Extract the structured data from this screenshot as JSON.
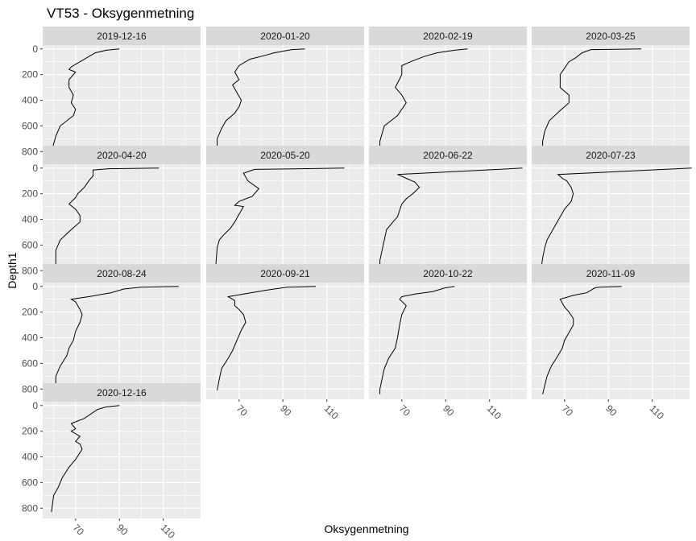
{
  "chart_data": {
    "type": "line",
    "title": "VT53  -  Oksygenmetning",
    "xlabel": "Oksygenmetning",
    "ylabel": "Depth1",
    "xlim": [
      55,
      127
    ],
    "ylim": [
      880,
      -30
    ],
    "y_reversed": true,
    "x_ticks": [
      70,
      90,
      110
    ],
    "y_ticks": [
      0,
      200,
      400,
      600,
      800
    ],
    "grid": true,
    "facets": [
      {
        "label": "2019-12-16",
        "x": [
          90,
          84,
          79,
          70,
          68,
          67,
          70,
          67,
          67,
          69,
          68,
          70,
          69,
          63,
          61,
          60,
          59
        ],
        "y": [
          0,
          10,
          30,
          120,
          140,
          160,
          180,
          240,
          300,
          360,
          420,
          470,
          520,
          600,
          680,
          740,
          800
        ]
      },
      {
        "label": "2020-01-20",
        "x": [
          100,
          94,
          86,
          82,
          75,
          70,
          68,
          70,
          67,
          69,
          71,
          70,
          68,
          64,
          62,
          60,
          60
        ],
        "y": [
          0,
          5,
          30,
          50,
          80,
          130,
          180,
          240,
          280,
          340,
          400,
          450,
          500,
          560,
          620,
          700,
          820
        ]
      },
      {
        "label": "2020-02-19",
        "x": [
          100,
          94,
          86,
          80,
          74,
          70,
          70,
          67,
          70,
          72,
          70,
          68,
          62,
          61,
          60,
          60
        ],
        "y": [
          0,
          10,
          30,
          60,
          100,
          130,
          200,
          300,
          360,
          420,
          470,
          520,
          600,
          660,
          720,
          810
        ]
      },
      {
        "label": "2020-03-25",
        "x": [
          105,
          82,
          78,
          75,
          72,
          70,
          68,
          68,
          72,
          72,
          68,
          63,
          61,
          60,
          60
        ],
        "y": [
          0,
          5,
          30,
          70,
          100,
          150,
          200,
          300,
          360,
          420,
          480,
          560,
          640,
          720,
          820
        ]
      },
      {
        "label": "2020-04-20",
        "x": [
          108,
          85,
          78,
          78,
          76,
          74,
          71,
          70,
          67,
          70,
          72,
          72,
          68,
          63,
          61,
          61
        ],
        "y": [
          0,
          5,
          15,
          60,
          100,
          150,
          200,
          230,
          280,
          320,
          370,
          420,
          480,
          560,
          640,
          830
        ]
      },
      {
        "label": "2020-05-20",
        "x": [
          118,
          77,
          72,
          74,
          79,
          76,
          70,
          68,
          72,
          70,
          68,
          66,
          63,
          61,
          60,
          59
        ],
        "y": [
          0,
          10,
          40,
          100,
          160,
          220,
          260,
          290,
          300,
          360,
          420,
          470,
          520,
          560,
          620,
          840
        ]
      },
      {
        "label": "2020-06-22",
        "x": [
          125,
          68,
          72,
          76,
          78,
          75,
          72,
          70,
          69,
          68,
          66,
          63,
          62,
          61,
          60,
          60
        ],
        "y": [
          0,
          50,
          80,
          110,
          150,
          200,
          240,
          280,
          330,
          380,
          420,
          480,
          560,
          640,
          720,
          840
        ]
      },
      {
        "label": "2020-07-23",
        "x": [
          128,
          67,
          69,
          71,
          73,
          74,
          73,
          70,
          68,
          66,
          64,
          62,
          61,
          60,
          59
        ],
        "y": [
          0,
          50,
          80,
          100,
          150,
          200,
          260,
          320,
          380,
          440,
          500,
          560,
          620,
          700,
          840
        ]
      },
      {
        "label": "2020-08-24",
        "x": [
          117,
          100,
          92,
          86,
          76,
          68,
          70,
          72,
          73,
          72,
          70,
          69,
          67,
          66,
          63,
          61,
          61
        ],
        "y": [
          0,
          5,
          20,
          50,
          80,
          100,
          120,
          180,
          220,
          280,
          350,
          420,
          480,
          540,
          620,
          700,
          800
        ]
      },
      {
        "label": "2020-09-21",
        "x": [
          105,
          92,
          82,
          72,
          65,
          68,
          68,
          70,
          72,
          73,
          71,
          69,
          67,
          65,
          62,
          61,
          60
        ],
        "y": [
          0,
          5,
          30,
          60,
          80,
          110,
          150,
          180,
          220,
          280,
          340,
          420,
          500,
          560,
          640,
          720,
          810
        ]
      },
      {
        "label": "2020-10-22",
        "x": [
          94,
          90,
          84,
          76,
          70,
          69,
          72,
          70,
          69,
          68,
          67,
          64,
          62,
          61,
          60,
          60
        ],
        "y": [
          0,
          10,
          40,
          60,
          80,
          100,
          150,
          220,
          300,
          400,
          480,
          560,
          640,
          720,
          800,
          840
        ]
      },
      {
        "label": "2020-11-09",
        "x": [
          96,
          86,
          84,
          80,
          74,
          68,
          70,
          72,
          74,
          74,
          72,
          70,
          69,
          67,
          64,
          62,
          60
        ],
        "y": [
          0,
          5,
          10,
          50,
          70,
          100,
          160,
          200,
          250,
          300,
          360,
          420,
          480,
          540,
          620,
          700,
          840
        ]
      },
      {
        "label": "2020-12-16",
        "x": [
          90,
          84,
          80,
          74,
          68,
          70,
          68,
          72,
          70,
          72,
          73,
          70,
          67,
          64,
          62,
          60,
          59
        ],
        "y": [
          0,
          10,
          30,
          100,
          140,
          180,
          200,
          240,
          280,
          300,
          340,
          420,
          480,
          560,
          640,
          700,
          830
        ]
      }
    ]
  }
}
